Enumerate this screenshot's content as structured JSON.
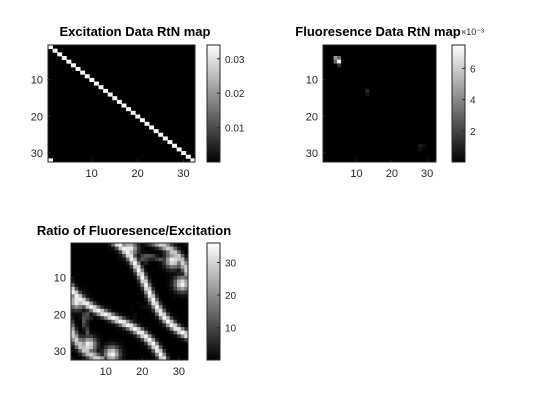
{
  "chart_data": [
    {
      "type": "heatmap",
      "title": "Excitation Data RtN map",
      "matrix_size": 32,
      "pattern": "diagonal",
      "diagonal_value": 0.033,
      "extra_points": [
        {
          "row": 32,
          "col": 1,
          "value": 0.033
        }
      ],
      "colormap": "gray",
      "clim": [
        0,
        0.034
      ],
      "xticks": [
        10,
        20,
        30
      ],
      "yticks": [
        10,
        20,
        30
      ],
      "xtick_labels": [
        "10",
        "20",
        "30"
      ],
      "ytick_labels": [
        "10",
        "20",
        "30"
      ],
      "colorbar": {
        "ticks": [
          0.01,
          0.02,
          0.03
        ],
        "tick_labels": [
          "0.01",
          "0.02",
          "0.03"
        ],
        "exponent_label": ""
      }
    },
    {
      "type": "heatmap",
      "title": "Fluoresence Data RtN map",
      "matrix_size": 32,
      "pattern": "sparse",
      "peaks": [
        {
          "row": 5,
          "col": 5,
          "value": 0.0075
        },
        {
          "row": 4,
          "col": 4,
          "value": 0.0045
        },
        {
          "row": 4,
          "col": 5,
          "value": 0.003
        },
        {
          "row": 5,
          "col": 4,
          "value": 0.003
        },
        {
          "row": 6,
          "col": 5,
          "value": 0.0015
        },
        {
          "row": 13,
          "col": 13,
          "value": 0.0012
        },
        {
          "row": 14,
          "col": 13,
          "value": 0.0006
        },
        {
          "row": 28,
          "col": 28,
          "value": 0.0009
        },
        {
          "row": 29,
          "col": 28,
          "value": 0.0006
        },
        {
          "row": 28,
          "col": 29,
          "value": 0.0005
        }
      ],
      "colormap": "gray",
      "clim": [
        0,
        0.0075
      ],
      "xticks": [
        10,
        20,
        30
      ],
      "yticks": [
        10,
        20,
        30
      ],
      "xtick_labels": [
        "10",
        "20",
        "30"
      ],
      "ytick_labels": [
        "10",
        "20",
        "30"
      ],
      "colorbar": {
        "ticks": [
          0.002,
          0.004,
          0.006
        ],
        "tick_labels": [
          "2",
          "4",
          "6"
        ],
        "exponent_label": "×10⁻³"
      }
    },
    {
      "type": "heatmap",
      "title": "Ratio of Fluoresence/Excitation",
      "matrix_size": 32,
      "pattern": "curves",
      "colormap": "gray",
      "clim": [
        0,
        36
      ],
      "max_value": 35,
      "xticks": [
        10,
        20,
        30
      ],
      "yticks": [
        10,
        20,
        30
      ],
      "xtick_labels": [
        "10",
        "20",
        "30"
      ],
      "ytick_labels": [
        "10",
        "20",
        "30"
      ],
      "colorbar": {
        "ticks": [
          10,
          20,
          30
        ],
        "tick_labels": [
          "10",
          "20",
          "30"
        ],
        "exponent_label": ""
      }
    }
  ]
}
